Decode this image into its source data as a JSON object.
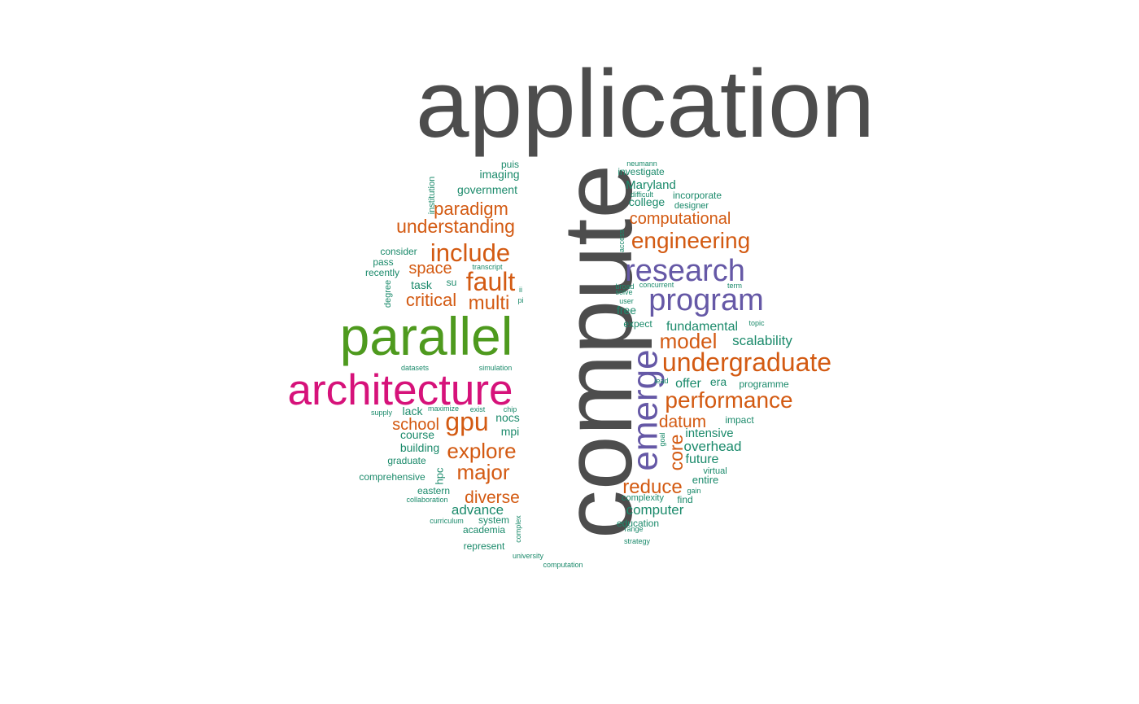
{
  "palette": {
    "gray": "#4d4d4d",
    "magenta": "#d6127a",
    "green": "#4e9a1e",
    "purple": "#6558a6",
    "orange": "#d35a12",
    "teal": "#1b8a6b"
  },
  "words": [
    {
      "text": "application",
      "color": "gray"
    },
    {
      "text": "compute",
      "color": "gray"
    },
    {
      "text": "parallel",
      "color": "green"
    },
    {
      "text": "architecture",
      "color": "magenta"
    },
    {
      "text": "emerge",
      "color": "purple"
    },
    {
      "text": "research",
      "color": "purple"
    },
    {
      "text": "program",
      "color": "purple"
    },
    {
      "text": "undergraduate",
      "color": "orange"
    },
    {
      "text": "performance",
      "color": "orange"
    },
    {
      "text": "engineering",
      "color": "orange"
    },
    {
      "text": "computational",
      "color": "orange"
    },
    {
      "text": "model",
      "color": "orange"
    },
    {
      "text": "datum",
      "color": "orange"
    },
    {
      "text": "reduce",
      "color": "orange"
    },
    {
      "text": "core",
      "color": "orange"
    },
    {
      "text": "include",
      "color": "orange"
    },
    {
      "text": "fault",
      "color": "orange"
    },
    {
      "text": "multi",
      "color": "orange"
    },
    {
      "text": "critical",
      "color": "orange"
    },
    {
      "text": "space",
      "color": "orange"
    },
    {
      "text": "understanding",
      "color": "orange"
    },
    {
      "text": "paradigm",
      "color": "orange"
    },
    {
      "text": "gpu",
      "color": "orange"
    },
    {
      "text": "school",
      "color": "orange"
    },
    {
      "text": "explore",
      "color": "orange"
    },
    {
      "text": "major",
      "color": "orange"
    },
    {
      "text": "diverse",
      "color": "orange"
    },
    {
      "text": "Maryland",
      "color": "teal"
    },
    {
      "text": "investigate",
      "color": "teal"
    },
    {
      "text": "neumann",
      "color": "teal"
    },
    {
      "text": "difficult",
      "color": "teal"
    },
    {
      "text": "college",
      "color": "teal"
    },
    {
      "text": "incorporate",
      "color": "teal"
    },
    {
      "text": "designer",
      "color": "teal"
    },
    {
      "text": "access",
      "color": "teal"
    },
    {
      "text": "broad",
      "color": "teal"
    },
    {
      "text": "concurrent",
      "color": "teal"
    },
    {
      "text": "term",
      "color": "teal"
    },
    {
      "text": "solve",
      "color": "teal"
    },
    {
      "text": "user",
      "color": "teal"
    },
    {
      "text": "free",
      "color": "teal"
    },
    {
      "text": "expect",
      "color": "teal"
    },
    {
      "text": "fundamental",
      "color": "teal"
    },
    {
      "text": "topic",
      "color": "teal"
    },
    {
      "text": "scalability",
      "color": "teal"
    },
    {
      "text": "lead",
      "color": "teal"
    },
    {
      "text": "offer",
      "color": "teal"
    },
    {
      "text": "era",
      "color": "teal"
    },
    {
      "text": "programme",
      "color": "teal"
    },
    {
      "text": "impact",
      "color": "teal"
    },
    {
      "text": "intensive",
      "color": "teal"
    },
    {
      "text": "goal",
      "color": "teal"
    },
    {
      "text": "overhead",
      "color": "teal"
    },
    {
      "text": "future",
      "color": "teal"
    },
    {
      "text": "virtual",
      "color": "teal"
    },
    {
      "text": "entire",
      "color": "teal"
    },
    {
      "text": "gain",
      "color": "teal"
    },
    {
      "text": "complexity",
      "color": "teal"
    },
    {
      "text": "find",
      "color": "teal"
    },
    {
      "text": "computer",
      "color": "teal"
    },
    {
      "text": "education",
      "color": "teal"
    },
    {
      "text": "range",
      "color": "teal"
    },
    {
      "text": "strategy",
      "color": "teal"
    },
    {
      "text": "puis",
      "color": "teal"
    },
    {
      "text": "imaging",
      "color": "teal"
    },
    {
      "text": "institution",
      "color": "teal"
    },
    {
      "text": "government",
      "color": "teal"
    },
    {
      "text": "consider",
      "color": "teal"
    },
    {
      "text": "pass",
      "color": "teal"
    },
    {
      "text": "recently",
      "color": "teal"
    },
    {
      "text": "transcript",
      "color": "teal"
    },
    {
      "text": "degree",
      "color": "teal"
    },
    {
      "text": "task",
      "color": "teal"
    },
    {
      "text": "su",
      "color": "teal"
    },
    {
      "text": "ii",
      "color": "teal"
    },
    {
      "text": "pi",
      "color": "teal"
    },
    {
      "text": "datasets",
      "color": "teal"
    },
    {
      "text": "simulation",
      "color": "teal"
    },
    {
      "text": "supply",
      "color": "teal"
    },
    {
      "text": "lack",
      "color": "teal"
    },
    {
      "text": "maximize",
      "color": "teal"
    },
    {
      "text": "exist",
      "color": "teal"
    },
    {
      "text": "chip",
      "color": "teal"
    },
    {
      "text": "nocs",
      "color": "teal"
    },
    {
      "text": "mpi",
      "color": "teal"
    },
    {
      "text": "course",
      "color": "teal"
    },
    {
      "text": "building",
      "color": "teal"
    },
    {
      "text": "graduate",
      "color": "teal"
    },
    {
      "text": "hpc",
      "color": "teal"
    },
    {
      "text": "comprehensive",
      "color": "teal"
    },
    {
      "text": "eastern",
      "color": "teal"
    },
    {
      "text": "collaboration",
      "color": "teal"
    },
    {
      "text": "advance",
      "color": "teal"
    },
    {
      "text": "curriculum",
      "color": "teal"
    },
    {
      "text": "system",
      "color": "teal"
    },
    {
      "text": "complex",
      "color": "teal"
    },
    {
      "text": "academia",
      "color": "teal"
    },
    {
      "text": "represent",
      "color": "teal"
    },
    {
      "text": "university",
      "color": "teal"
    },
    {
      "text": "computation",
      "color": "teal"
    }
  ]
}
